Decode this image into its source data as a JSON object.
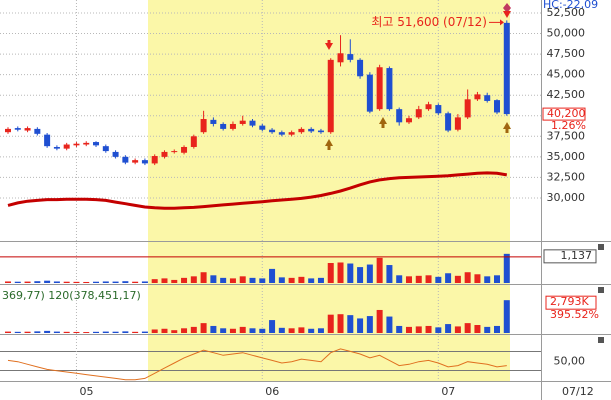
{
  "chart_data": [
    {
      "type": "candlestick",
      "header": "HC:-22,09",
      "annotation": "최고 51,600 (07/12)",
      "categories": [
        null,
        null,
        null,
        null,
        null,
        null,
        null,
        "05",
        null,
        null,
        null,
        null,
        null,
        null,
        null,
        null,
        null,
        null,
        null,
        null,
        null,
        null,
        null,
        null,
        null,
        null,
        "06",
        null,
        null,
        null,
        null,
        null,
        null,
        null,
        null,
        null,
        null,
        null,
        null,
        null,
        null,
        null,
        null,
        null,
        "07",
        null,
        null,
        null,
        null,
        null,
        null,
        null
      ],
      "date_label": "07/12",
      "open": [
        38000,
        38500,
        38200,
        38400,
        37700,
        36200,
        36000,
        36400,
        36500,
        36800,
        36300,
        35600,
        35000,
        34300,
        34600,
        34200,
        35000,
        35600,
        35500,
        36200,
        38000,
        39500,
        39000,
        38400,
        39000,
        39400,
        38800,
        38300,
        38000,
        37700,
        38000,
        38400,
        38200,
        38000,
        46500,
        47500,
        46800,
        45000,
        40800,
        45800,
        40800,
        39200,
        39800,
        40800,
        41300,
        40300,
        38300,
        39800,
        42000,
        42500,
        41900,
        51300
      ],
      "high": [
        38600,
        38700,
        38700,
        38600,
        37900,
        36400,
        36700,
        36800,
        36900,
        36900,
        36500,
        35800,
        35200,
        34800,
        34800,
        35300,
        35800,
        35900,
        36400,
        37700,
        40600,
        39800,
        39200,
        39300,
        40000,
        39600,
        39000,
        38500,
        38200,
        38200,
        38600,
        38600,
        38400,
        47000,
        49800,
        49300,
        47000,
        45300,
        46200,
        46000,
        41000,
        40000,
        41200,
        41700,
        41500,
        40500,
        40200,
        43200,
        42900,
        42800,
        42000,
        51600
      ],
      "low": [
        37800,
        38100,
        38000,
        37600,
        36100,
        35800,
        35800,
        36200,
        36300,
        36200,
        35500,
        34800,
        34100,
        34100,
        34000,
        34000,
        34800,
        35400,
        35300,
        36000,
        37800,
        38700,
        38200,
        38200,
        38800,
        38600,
        38100,
        37800,
        37500,
        37500,
        37800,
        37900,
        37800,
        37800,
        46000,
        46500,
        44500,
        40300,
        40600,
        40600,
        38800,
        39000,
        39600,
        40600,
        40100,
        38000,
        38100,
        39600,
        41800,
        41600,
        40200,
        40000
      ],
      "close": [
        38400,
        38300,
        38500,
        37800,
        36300,
        36000,
        36500,
        36600,
        36700,
        36400,
        35700,
        35000,
        34300,
        34600,
        34200,
        35100,
        35600,
        35700,
        36200,
        37500,
        39600,
        39000,
        38400,
        39000,
        39400,
        38800,
        38300,
        38000,
        37700,
        38000,
        38400,
        38100,
        38000,
        46800,
        47600,
        46800,
        44800,
        40500,
        45900,
        40800,
        39200,
        39700,
        40800,
        41400,
        40300,
        38200,
        39800,
        42000,
        42600,
        41800,
        40400,
        40200
      ],
      "close_label": "40,200",
      "change_label": "1.26%",
      "up_color": "#e8241c",
      "down_color": "#1f4fd1",
      "ma": {
        "color": "#c40000",
        "values": [
          29100,
          29400,
          29600,
          29700,
          29800,
          29800,
          29850,
          29850,
          29850,
          29800,
          29700,
          29500,
          29300,
          29100,
          28900,
          28800,
          28750,
          28750,
          28800,
          28850,
          28950,
          29050,
          29150,
          29250,
          29350,
          29450,
          29550,
          29650,
          29750,
          29850,
          29950,
          30100,
          30300,
          30550,
          30850,
          31200,
          31600,
          31950,
          32200,
          32350,
          32450,
          32500,
          32550,
          32600,
          32650,
          32700,
          32800,
          32900,
          33000,
          33050,
          33000,
          32800
        ]
      },
      "ylim": [
        24885,
        54080
      ],
      "yticks": [
        {
          "value": 30000,
          "label": "30,000"
        },
        {
          "value": 32500,
          "label": "32,500"
        },
        {
          "value": 35000,
          "label": "35,000"
        },
        {
          "value": 37500,
          "label": "37,500"
        },
        {
          "value": 40000,
          "label": "40,000"
        },
        {
          "value": 42500,
          "label": "42,500"
        },
        {
          "value": 45000,
          "label": "45,000"
        },
        {
          "value": 47500,
          "label": "47,500"
        },
        {
          "value": 50000,
          "label": "50,000"
        },
        {
          "value": 52500,
          "label": "52,500"
        }
      ],
      "grid": true
    },
    {
      "type": "bar",
      "values": [
        60,
        50,
        55,
        70,
        90,
        60,
        50,
        45,
        40,
        50,
        60,
        55,
        70,
        50,
        60,
        150,
        180,
        120,
        200,
        260,
        420,
        300,
        200,
        180,
        260,
        200,
        180,
        550,
        220,
        200,
        240,
        180,
        200,
        780,
        800,
        760,
        620,
        720,
        980,
        700,
        300,
        260,
        280,
        300,
        240,
        380,
        280,
        420,
        340,
        260,
        300,
        1137
      ],
      "last_label": "1,137",
      "ylim": [
        0,
        1560
      ]
    },
    {
      "type": "bar",
      "header": "369,77) 120(378,451,17)",
      "values": [
        120,
        100,
        110,
        140,
        180,
        120,
        100,
        90,
        80,
        100,
        120,
        110,
        140,
        100,
        120,
        300,
        360,
        240,
        400,
        520,
        840,
        600,
        400,
        360,
        520,
        400,
        360,
        1100,
        440,
        400,
        480,
        360,
        400,
        1560,
        1600,
        1520,
        1240,
        1440,
        1960,
        1400,
        600,
        520,
        560,
        600,
        480,
        760,
        560,
        840,
        680,
        520,
        600,
        2793
      ],
      "last_label": "2,793K",
      "ratio_label": "395.52%",
      "ylim": [
        0,
        4000
      ]
    },
    {
      "type": "line",
      "color": "#e07020",
      "values": [
        52,
        50,
        46,
        42,
        38,
        36,
        34,
        32,
        30,
        28,
        26,
        24,
        22,
        22,
        24,
        32,
        40,
        48,
        56,
        62,
        68,
        64,
        60,
        62,
        64,
        60,
        56,
        52,
        48,
        50,
        54,
        52,
        50,
        64,
        70,
        66,
        62,
        56,
        60,
        52,
        44,
        46,
        50,
        52,
        48,
        42,
        44,
        50,
        48,
        46,
        42,
        44
      ],
      "ylim": [
        20,
        90
      ],
      "yticks": [
        {
          "value": 50,
          "label": "50,00"
        }
      ]
    }
  ]
}
